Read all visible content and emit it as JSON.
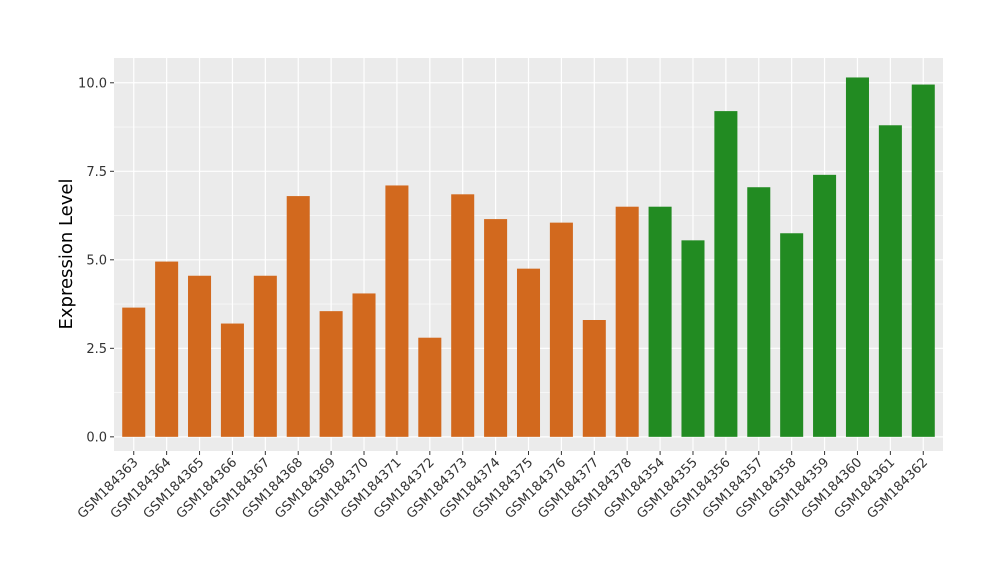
{
  "chart_data": {
    "type": "bar",
    "title": "",
    "xlabel": "",
    "ylabel": "Expression Level",
    "ylim": [
      -0.4,
      10.7
    ],
    "yticks": [
      "0.0",
      "2.5",
      "5.0",
      "7.5",
      "10.0"
    ],
    "ytick_values": [
      0,
      2.5,
      5,
      7.5,
      10
    ],
    "grid": true,
    "legend": "none",
    "categories": [
      "GSM184363",
      "GSM184364",
      "GSM184365",
      "GSM184366",
      "GSM184367",
      "GSM184368",
      "GSM184369",
      "GSM184370",
      "GSM184371",
      "GSM184372",
      "GSM184373",
      "GSM184374",
      "GSM184375",
      "GSM184376",
      "GSM184377",
      "GSM184378",
      "GSM184354",
      "GSM184355",
      "GSM184356",
      "GSM184357",
      "GSM184358",
      "GSM184359",
      "GSM184360",
      "GSM184361",
      "GSM184362"
    ],
    "values": [
      3.65,
      4.95,
      4.55,
      3.2,
      4.55,
      6.8,
      3.55,
      4.05,
      7.1,
      2.8,
      6.85,
      6.15,
      4.75,
      6.05,
      3.3,
      6.5,
      6.5,
      5.55,
      9.2,
      7.05,
      5.75,
      7.4,
      10.15,
      8.8,
      9.95
    ],
    "groups": [
      "a",
      "a",
      "a",
      "a",
      "a",
      "a",
      "a",
      "a",
      "a",
      "a",
      "a",
      "a",
      "a",
      "a",
      "a",
      "a",
      "b",
      "b",
      "b",
      "b",
      "b",
      "b",
      "b",
      "b",
      "b"
    ],
    "colors": {
      "a": "#D2691E",
      "b": "#228B22"
    }
  }
}
